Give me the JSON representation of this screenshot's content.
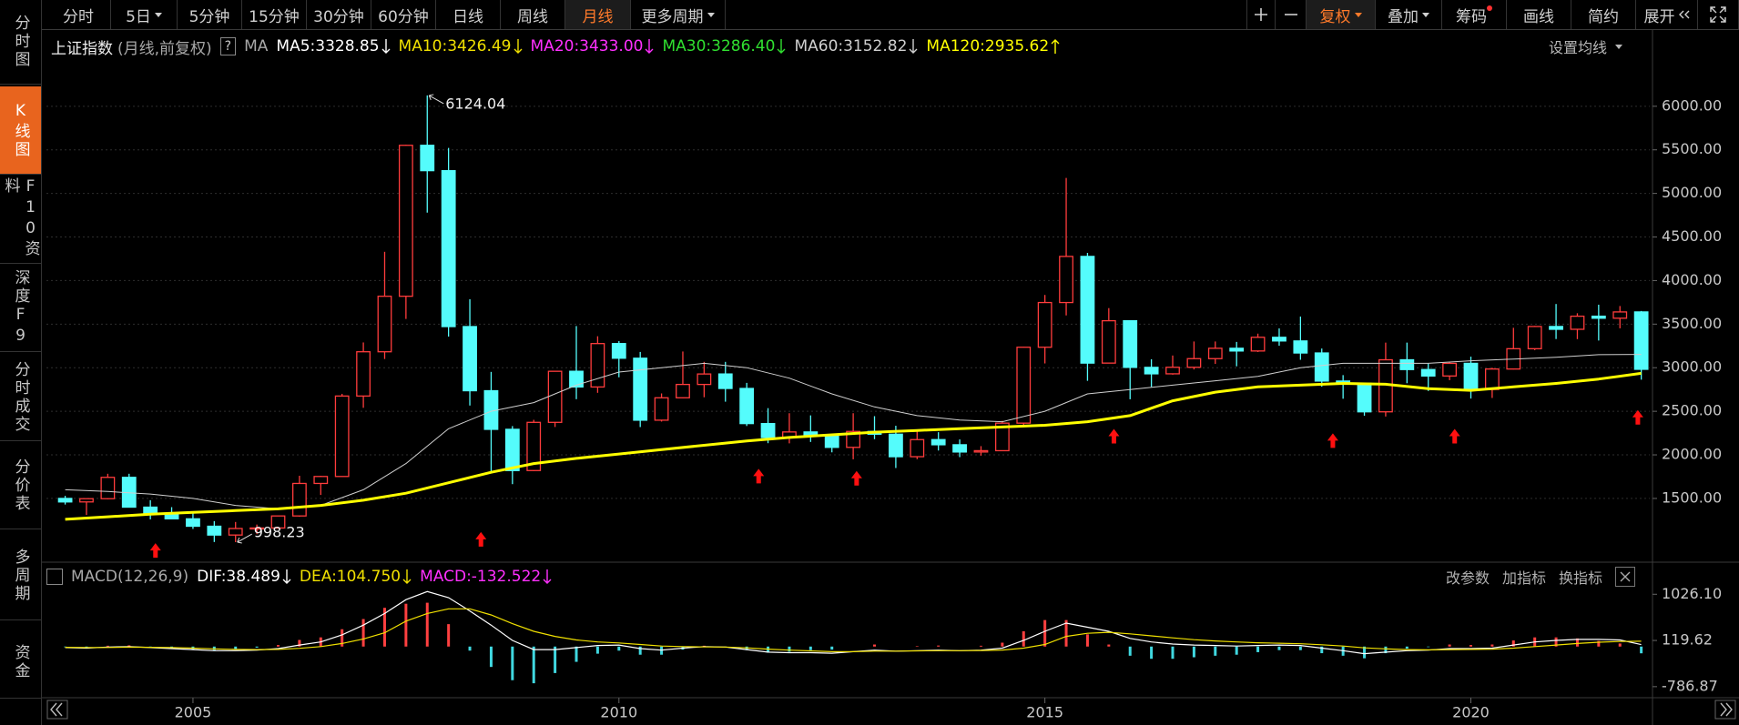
{
  "toolbar": {
    "periods": [
      "分时",
      "5日",
      "5分钟",
      "15分钟",
      "30分钟",
      "60分钟",
      "日线",
      "周线",
      "月线",
      "更多周期"
    ],
    "tools": [
      "复权",
      "叠加",
      "筹码",
      "画线",
      "简约",
      "展开"
    ]
  },
  "sidebar": {
    "items": [
      "分时图",
      "K线图",
      "F10资料",
      "深度F9",
      "分时成交",
      "分价表",
      "多周期",
      "资金"
    ]
  },
  "panel_buttons": {
    "ma_settings": "设置均线",
    "indicator_buttons": [
      "改参数",
      "加指标",
      "换指标"
    ]
  },
  "chart_data": [
    {
      "type": "candlestick",
      "title": "上证指数",
      "subtitle": "(月线,前复权)",
      "help_label": "?",
      "indicator": "MA",
      "legend": [
        {
          "label": "MA5:3328.85",
          "color": "#ffffff",
          "trend": "down"
        },
        {
          "label": "MA10:3426.49",
          "color": "#f0e000",
          "trend": "down"
        },
        {
          "label": "MA20:3433.00",
          "color": "#ff30ff",
          "trend": "down"
        },
        {
          "label": "MA30:3286.40",
          "color": "#30e030",
          "trend": "down"
        },
        {
          "label": "MA60:3152.82",
          "color": "#cfcfcf",
          "trend": "down"
        },
        {
          "label": "MA120:2935.62",
          "color": "#ffff00",
          "trend": "up"
        }
      ],
      "up_color": "#ff3c3c",
      "down_color": "#54fcfc",
      "grid": true,
      "x": [
        2003.5,
        2003.75,
        2004,
        2004.25,
        2004.5,
        2004.75,
        2005,
        2005.25,
        2005.5,
        2005.75,
        2006,
        2006.25,
        2006.5,
        2006.75,
        2007,
        2007.25,
        2007.5,
        2007.75,
        2008,
        2008.25,
        2008.5,
        2008.75,
        2009,
        2009.25,
        2009.5,
        2009.75,
        2010,
        2010.25,
        2010.5,
        2010.75,
        2011,
        2011.25,
        2011.5,
        2011.75,
        2012,
        2012.25,
        2012.5,
        2012.75,
        2013,
        2013.25,
        2013.5,
        2013.75,
        2014,
        2014.25,
        2014.5,
        2014.75,
        2015,
        2015.25,
        2015.5,
        2015.75,
        2016,
        2016.25,
        2016.5,
        2016.75,
        2017,
        2017.25,
        2017.5,
        2017.75,
        2018,
        2018.25,
        2018.5,
        2018.75,
        2019,
        2019.25,
        2019.5,
        2019.75,
        2020,
        2020.25,
        2020.5,
        2020.75,
        2021,
        2021.25,
        2021.5,
        2021.75,
        2022
      ],
      "open": [
        1500,
        1460,
        1497,
        1742,
        1400,
        1320,
        1266,
        1181,
        1080,
        1155,
        1161,
        1299,
        1672,
        1752,
        2675,
        3183,
        3820,
        5552,
        5261,
        3472,
        2736,
        2293,
        1820,
        2373,
        2959,
        2779,
        3277,
        3109,
        2398,
        2655,
        2808,
        2928,
        2762,
        2359,
        2199,
        2263,
        2225,
        2086,
        2269,
        2237,
        1979,
        2175,
        2116,
        2033,
        2048,
        2364,
        3235,
        3748,
        4277,
        3053,
        3539,
        3004,
        2930,
        3005,
        3104,
        3223,
        3192,
        3349,
        3307,
        3169,
        2847,
        2821,
        2494,
        3091,
        2979,
        2905,
        3050,
        2750,
        2985,
        3218,
        3473,
        3441,
        3591,
        3568,
        3640
      ],
      "high": [
        1530,
        1500,
        1783,
        1783,
        1480,
        1400,
        1330,
        1240,
        1230,
        1200,
        1300,
        1760,
        1760,
        2700,
        3290,
        4330,
        5560,
        6124.04,
        5522,
        3786,
        2952,
        2330,
        2402,
        2965,
        3478,
        3361,
        3306,
        3181,
        2705,
        3186,
        3067,
        3067,
        2826,
        2536,
        2478,
        2453,
        2243,
        2478,
        2444,
        2334,
        2270,
        2260,
        2177,
        2100,
        2391,
        3239,
        3835,
        5178,
        4317,
        3684,
        3545,
        3097,
        3140,
        3301,
        3301,
        3296,
        3391,
        3451,
        3587,
        3220,
        2915,
        2830,
        3288,
        3288,
        3048,
        3060,
        3127,
        3000,
        3458,
        3480,
        3731,
        3625,
        3723,
        3708,
        3651
      ],
      "low": [
        1430,
        1310,
        1490,
        1400,
        1260,
        1260,
        1150,
        1000,
        998.23,
        1090,
        1160,
        1290,
        1540,
        1750,
        2540,
        3100,
        3560,
        4780,
        3357,
        2566,
        1802,
        1664,
        1814,
        2320,
        2639,
        2712,
        2890,
        2319,
        2382,
        2650,
        2661,
        2610,
        2331,
        2134,
        2132,
        2148,
        2029,
        1949,
        2180,
        1849,
        1950,
        2050,
        1974,
        1991,
        2046,
        2338,
        3049,
        3600,
        2850,
        3050,
        2638,
        2780,
        2920,
        2980,
        3044,
        3016,
        3180,
        3252,
        3091,
        2782,
        2644,
        2449,
        2440,
        2822,
        2733,
        2857,
        2646,
        2653,
        2980,
        3202,
        3329,
        3328,
        3312,
        3452,
        2863
      ],
      "close": [
        1460,
        1497,
        1742,
        1400,
        1320,
        1266,
        1181,
        1080,
        1155,
        1161,
        1299,
        1672,
        1752,
        2675,
        3183,
        3820,
        5552,
        5261,
        3472,
        2736,
        2293,
        1820,
        2373,
        2959,
        2779,
        3277,
        3109,
        2398,
        2655,
        2808,
        2928,
        2762,
        2359,
        2199,
        2263,
        2225,
        2086,
        2269,
        2237,
        1979,
        2175,
        2116,
        2033,
        2048,
        2364,
        3235,
        3748,
        4277,
        3053,
        3539,
        3004,
        2930,
        3005,
        3104,
        3223,
        3192,
        3349,
        3307,
        3169,
        2847,
        2821,
        2494,
        3091,
        2979,
        2905,
        3050,
        2750,
        2985,
        3218,
        3473,
        3441,
        3591,
        3568,
        3640,
        2982
      ],
      "ma_lines": [
        {
          "color": "#cfcfcf",
          "width": 1,
          "x": [
            2003.5,
            2004,
            2004.5,
            2005,
            2005.5,
            2006,
            2006.5,
            2007,
            2007.5,
            2008,
            2008.5,
            2009,
            2009.5,
            2010,
            2010.5,
            2011,
            2011.5,
            2012,
            2012.5,
            2013,
            2013.5,
            2014,
            2014.5,
            2015,
            2015.5,
            2016,
            2016.5,
            2017,
            2017.5,
            2018,
            2018.5,
            2019,
            2019.5,
            2020,
            2020.5,
            2021,
            2021.5,
            2022
          ],
          "values": [
            1600,
            1580,
            1550,
            1500,
            1420,
            1380,
            1420,
            1600,
            1900,
            2300,
            2500,
            2600,
            2800,
            2950,
            3000,
            3050,
            3000,
            2880,
            2700,
            2550,
            2450,
            2400,
            2380,
            2500,
            2700,
            2750,
            2800,
            2850,
            2900,
            3000,
            3050,
            3050,
            3050,
            3080,
            3100,
            3120,
            3150,
            3152.82
          ]
        },
        {
          "color": "#ffff00",
          "width": 3,
          "x": [
            2003.5,
            2004,
            2004.5,
            2005,
            2005.5,
            2006,
            2006.5,
            2007,
            2007.5,
            2008,
            2008.5,
            2009,
            2009.5,
            2010,
            2010.5,
            2011,
            2011.5,
            2012,
            2012.5,
            2013,
            2013.5,
            2014,
            2014.5,
            2015,
            2015.5,
            2016,
            2016.5,
            2017,
            2017.5,
            2018,
            2018.5,
            2019,
            2019.5,
            2020,
            2020.5,
            2021,
            2021.5,
            2022
          ],
          "values": [
            1260,
            1290,
            1320,
            1340,
            1360,
            1380,
            1420,
            1480,
            1560,
            1680,
            1800,
            1900,
            1960,
            2010,
            2060,
            2110,
            2160,
            2200,
            2230,
            2260,
            2280,
            2300,
            2320,
            2340,
            2380,
            2450,
            2620,
            2720,
            2780,
            2800,
            2820,
            2810,
            2760,
            2740,
            2780,
            2820,
            2870,
            2935.62
          ]
        }
      ],
      "annotations": [
        {
          "x": 2007.75,
          "value": 6124.04
        },
        {
          "x": 2005.5,
          "value": 998.23
        }
      ],
      "signal_markers": {
        "color": "#ff1010",
        "x": [
          2004.56,
          2008.38,
          2011.64,
          2012.79,
          2015.81,
          2018.38,
          2019.81,
          2021.96
        ],
        "values": [
          987,
          1115,
          1840,
          1815,
          2298,
          2247,
          2298,
          2515
        ]
      },
      "xlim": [
        2003.28,
        2022.1
      ],
      "ylim": [
        800,
        6520
      ],
      "yticks": [
        {
          "value": 1500,
          "label": "1500.00"
        },
        {
          "value": 2000,
          "label": "2000.00"
        },
        {
          "value": 2500,
          "label": "2500.00"
        },
        {
          "value": 3000,
          "label": "3000.00"
        },
        {
          "value": 3500,
          "label": "3500.00"
        },
        {
          "value": 4000,
          "label": "4000.00"
        },
        {
          "value": 4500,
          "label": "4500.00"
        },
        {
          "value": 5000,
          "label": "5000.00"
        },
        {
          "value": 5500,
          "label": "5500.00"
        },
        {
          "value": 6000,
          "label": "6000.00"
        }
      ]
    },
    {
      "type": "macd",
      "title": "MACD(12,26,9)",
      "legend": [
        {
          "label": "DIF:38.489",
          "color": "#ffffff",
          "trend": "down"
        },
        {
          "label": "DEA:104.750",
          "color": "#f0e000",
          "trend": "down"
        },
        {
          "label": "MACD:-132.522",
          "color": "#ff30ff",
          "trend": "down"
        }
      ],
      "up_color": "#ff4040",
      "down_color": "#40d8e0",
      "x": [
        2003.5,
        2003.75,
        2004,
        2004.25,
        2004.5,
        2004.75,
        2005,
        2005.25,
        2005.5,
        2005.75,
        2006,
        2006.25,
        2006.5,
        2006.75,
        2007,
        2007.25,
        2007.5,
        2007.75,
        2008,
        2008.25,
        2008.5,
        2008.75,
        2009,
        2009.25,
        2009.5,
        2009.75,
        2010,
        2010.25,
        2010.5,
        2010.75,
        2011,
        2011.25,
        2011.5,
        2011.75,
        2012,
        2012.25,
        2012.5,
        2012.75,
        2013,
        2013.25,
        2013.5,
        2013.75,
        2014,
        2014.25,
        2014.5,
        2014.75,
        2015,
        2015.25,
        2015.5,
        2015.75,
        2016,
        2016.25,
        2016.5,
        2016.75,
        2017,
        2017.25,
        2017.5,
        2017.75,
        2018,
        2018.25,
        2018.5,
        2018.75,
        2019,
        2019.25,
        2019.5,
        2019.75,
        2020,
        2020.25,
        2020.5,
        2020.75,
        2021,
        2021.25,
        2021.5,
        2021.75,
        2022
      ],
      "dif": [
        -20,
        -30,
        -10,
        0,
        -20,
        -40,
        -60,
        -80,
        -80,
        -70,
        -40,
        30,
        90,
        230,
        420,
        650,
        920,
        1080,
        960,
        700,
        420,
        120,
        -60,
        -60,
        -20,
        20,
        30,
        -40,
        -70,
        -30,
        0,
        -10,
        -60,
        -110,
        -120,
        -120,
        -130,
        -100,
        -70,
        -90,
        -80,
        -70,
        -80,
        -70,
        -30,
        120,
        300,
        460,
        380,
        300,
        160,
        90,
        50,
        30,
        20,
        10,
        20,
        30,
        20,
        -30,
        -80,
        -140,
        -110,
        -80,
        -70,
        -40,
        -40,
        -30,
        30,
        90,
        120,
        140,
        140,
        130,
        38.489
      ],
      "dea": [
        -15,
        -20,
        -18,
        -12,
        -14,
        -20,
        -30,
        -45,
        -55,
        -60,
        -55,
        -35,
        0,
        60,
        150,
        270,
        500,
        650,
        740,
        740,
        620,
        450,
        300,
        200,
        130,
        90,
        70,
        40,
        10,
        0,
        -8,
        -9,
        -25,
        -50,
        -70,
        -85,
        -100,
        -100,
        -90,
        -90,
        -85,
        -80,
        -80,
        -78,
        -68,
        -30,
        40,
        200,
        260,
        280,
        250,
        210,
        170,
        135,
        110,
        90,
        75,
        65,
        55,
        35,
        10,
        -25,
        -45,
        -60,
        -65,
        -60,
        -55,
        -50,
        -30,
        0,
        30,
        60,
        85,
        100,
        104.75
      ],
      "macd": [
        -10,
        -20,
        16,
        24,
        -12,
        -40,
        -60,
        -70,
        -50,
        -20,
        30,
        130,
        180,
        340,
        540,
        760,
        840,
        860,
        440,
        -80,
        -400,
        -660,
        -720,
        -520,
        -300,
        -140,
        -80,
        -160,
        -160,
        -60,
        16,
        -2,
        -70,
        -120,
        -100,
        -70,
        -60,
        0,
        40,
        0,
        10,
        20,
        0,
        16,
        76,
        300,
        520,
        520,
        240,
        40,
        -180,
        -240,
        -240,
        -210,
        -180,
        -160,
        -110,
        -70,
        -70,
        -130,
        -180,
        -230,
        -130,
        -40,
        -10,
        40,
        30,
        40,
        120,
        180,
        180,
        160,
        110,
        60,
        -132.522
      ],
      "xlim": [
        2003.28,
        2022.1
      ],
      "ylim": [
        -968,
        1174
      ],
      "xticks": [
        2005,
        2010,
        2015,
        2020
      ],
      "yticks": [
        {
          "value": -786.87,
          "label": "-786.87"
        },
        {
          "value": 119.62,
          "label": "119.62"
        },
        {
          "value": 1026.1,
          "label": "1026.10"
        }
      ]
    }
  ]
}
